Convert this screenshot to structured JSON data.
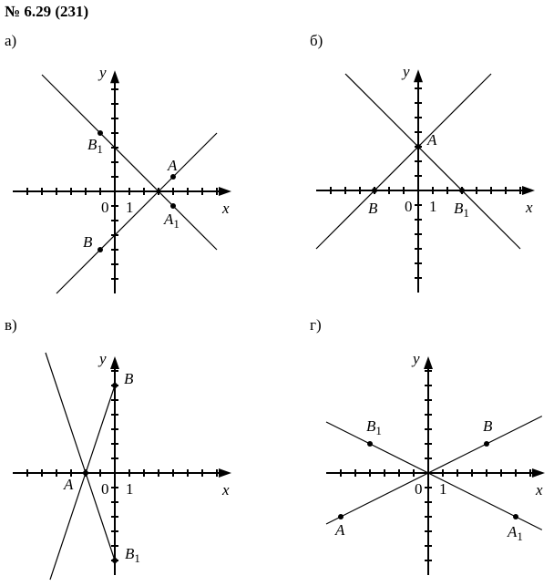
{
  "title": "№ 6.29 (231)",
  "colors": {
    "ink": "#000000",
    "background": "#ffffff"
  },
  "panels": [
    {
      "label": "а)",
      "axis_x": "x",
      "axis_y": "y",
      "origin_label": "0",
      "unit_label": "1",
      "points": [
        {
          "name": "B",
          "sub": "1",
          "x": -1,
          "y": 4
        },
        {
          "name": "A",
          "sub": "",
          "x": 4,
          "y": 1
        },
        {
          "name": "A",
          "sub": "1",
          "x": 4,
          "y": -1
        },
        {
          "name": "B",
          "sub": "",
          "x": -1,
          "y": -4
        }
      ],
      "lines": [
        {
          "equation": "y = -x + 3",
          "k": -1,
          "b": 3
        },
        {
          "equation": "y = x - 3",
          "k": 1,
          "b": -3
        }
      ]
    },
    {
      "label": "б)",
      "axis_x": "x",
      "axis_y": "y",
      "origin_label": "0",
      "unit_label": "1",
      "points": [
        {
          "name": "A",
          "sub": "",
          "x": 0,
          "y": 3
        },
        {
          "name": "B",
          "sub": "",
          "x": -3,
          "y": 0
        },
        {
          "name": "B",
          "sub": "1",
          "x": 3,
          "y": 0
        }
      ],
      "lines": [
        {
          "equation": "y = -x + 3",
          "k": -1,
          "b": 3
        },
        {
          "equation": "y = x + 3",
          "k": 1,
          "b": 3
        }
      ]
    },
    {
      "label": "в)",
      "axis_x": "x",
      "axis_y": "y",
      "origin_label": "0",
      "unit_label": "1",
      "points": [
        {
          "name": "B",
          "sub": "",
          "x": 0,
          "y": 6
        },
        {
          "name": "B",
          "sub": "1",
          "x": 0,
          "y": -6
        },
        {
          "name": "A",
          "sub": "",
          "x": -2,
          "y": 0
        }
      ],
      "lines": [
        {
          "equation": "y = 3x + 6",
          "k": 3,
          "b": 6
        },
        {
          "equation": "y = -3x - 6",
          "k": -3,
          "b": -6
        }
      ]
    },
    {
      "label": "г)",
      "axis_x": "x",
      "axis_y": "y",
      "origin_label": "0",
      "unit_label": "1",
      "points": [
        {
          "name": "B",
          "sub": "1",
          "x": -4,
          "y": 2
        },
        {
          "name": "B",
          "sub": "",
          "x": 4,
          "y": 2
        },
        {
          "name": "A",
          "sub": "",
          "x": -6,
          "y": -3
        },
        {
          "name": "A",
          "sub": "1",
          "x": 6,
          "y": -3
        }
      ],
      "lines": [
        {
          "equation": "y = x/2",
          "k": 0.5,
          "b": 0
        },
        {
          "equation": "y = -x/2",
          "k": -0.5,
          "b": 0
        }
      ]
    }
  ]
}
